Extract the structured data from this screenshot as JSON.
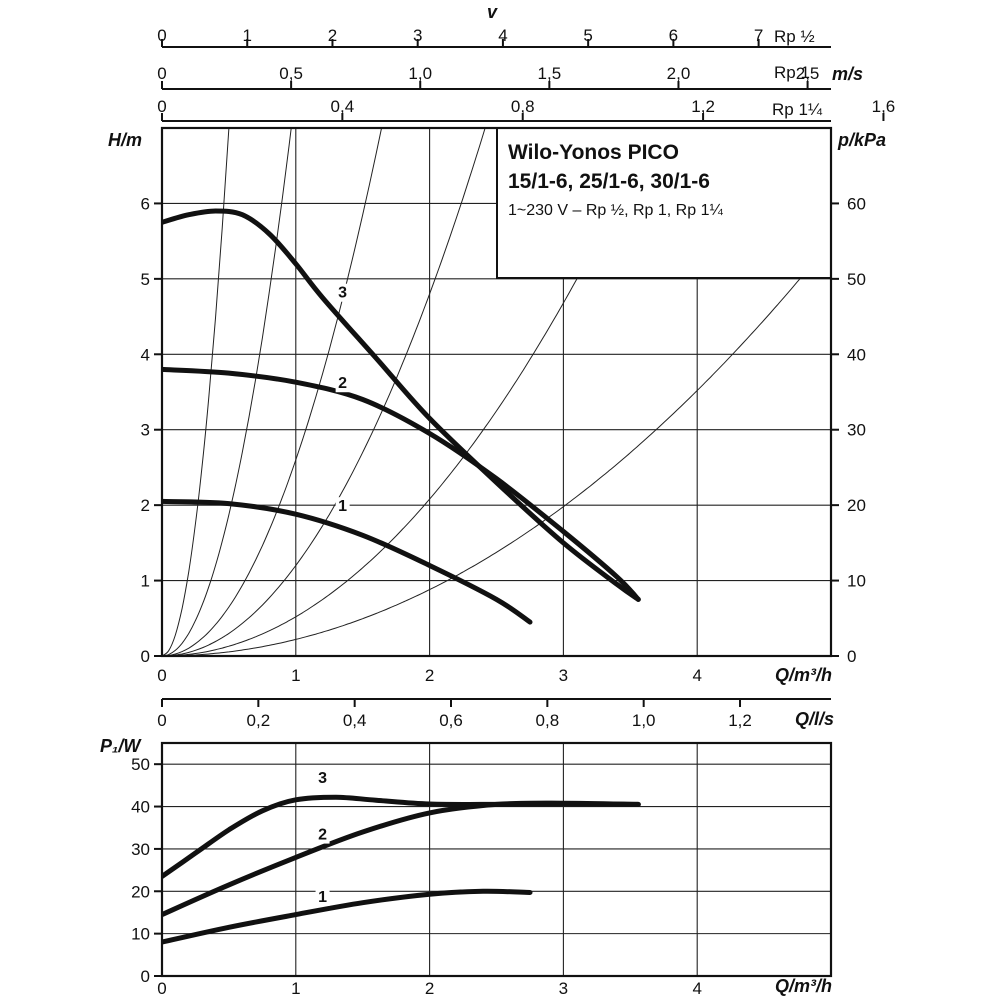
{
  "chart_data": [
    {
      "type": "line",
      "title": "Wilo-Yonos PICO",
      "subtitle": "15/1-6, 25/1-6, 30/1-6",
      "note": "1~230 V – Rp ½, Rp 1, Rp 1¼",
      "xlabel": "Q/m³/h",
      "ylabel": "H/m",
      "ylabel_right": "p/kPa",
      "xlim": [
        0,
        5
      ],
      "ylim": [
        0,
        7
      ],
      "ylim_right": [
        0,
        70
      ],
      "xticks": [
        "0",
        "1",
        "2",
        "3",
        "4"
      ],
      "yticks": [
        "0",
        "1",
        "2",
        "3",
        "4",
        "5",
        "6"
      ],
      "yticks_right": [
        "0",
        "10",
        "20",
        "30",
        "40",
        "50",
        "60"
      ],
      "grid": true,
      "velocity_axes": {
        "label": "v",
        "unit": "m/s",
        "scales": [
          {
            "name": "Rp ½",
            "ticks": [
              "0",
              "1",
              "2",
              "3",
              "4",
              "5",
              "6",
              "7"
            ],
            "values": [
              0,
              1,
              2,
              3,
              4,
              5,
              6,
              7
            ],
            "q_per_unit": 0.637
          },
          {
            "name": "Rp 1",
            "ticks": [
              "0",
              "0,5",
              "1,0",
              "1,5",
              "2,0",
              "2,5"
            ],
            "values": [
              0,
              0.5,
              1.0,
              1.5,
              2.0,
              2.5
            ],
            "q_per_unit": 1.93
          },
          {
            "name": "Rp 1¼",
            "ticks": [
              "0",
              "0,4",
              "0,8",
              "1,2",
              "1,6"
            ],
            "values": [
              0,
              0.4,
              0.8,
              1.2,
              1.6
            ],
            "q_per_unit": 3.37
          }
        ]
      },
      "flow_ls_axis": {
        "label": "Q/l/s",
        "ticks": [
          "0",
          "0,2",
          "0,4",
          "0,6",
          "0,8",
          "1,0",
          "1,2"
        ],
        "values": [
          0,
          0.2,
          0.4,
          0.6,
          0.8,
          1.0,
          1.2
        ]
      },
      "system_curves_k": [
        28,
        7.5,
        2.6,
        1.2,
        0.52,
        0.22
      ],
      "series": [
        {
          "name": "1",
          "x": [
            0,
            0.5,
            1.0,
            1.5,
            2.0,
            2.5,
            2.75
          ],
          "y": [
            2.05,
            2.02,
            1.88,
            1.6,
            1.2,
            0.75,
            0.45
          ]
        },
        {
          "name": "2",
          "x": [
            0,
            0.5,
            1.0,
            1.5,
            2.0,
            2.5,
            3.0,
            3.4,
            3.56
          ],
          "y": [
            3.8,
            3.75,
            3.63,
            3.4,
            2.95,
            2.35,
            1.65,
            1.05,
            0.75
          ]
        },
        {
          "name": "3",
          "x": [
            0,
            0.2,
            0.4,
            0.6,
            0.8,
            1.0,
            1.2,
            1.6,
            2.0,
            2.5,
            3.0,
            3.4,
            3.56
          ],
          "y": [
            5.75,
            5.85,
            5.9,
            5.85,
            5.6,
            5.2,
            4.75,
            3.95,
            3.15,
            2.3,
            1.5,
            0.95,
            0.75
          ]
        }
      ]
    },
    {
      "type": "line",
      "xlabel": "Q/m³/h",
      "ylabel": "P₁/W",
      "xlim": [
        0,
        5
      ],
      "ylim": [
        0,
        55
      ],
      "xticks": [
        "0",
        "1",
        "2",
        "3",
        "4"
      ],
      "yticks": [
        "0",
        "10",
        "20",
        "30",
        "40",
        "50"
      ],
      "grid": true,
      "series": [
        {
          "name": "1",
          "x": [
            0,
            0.5,
            1.0,
            1.5,
            2.0,
            2.4,
            2.75
          ],
          "y": [
            8,
            11.5,
            14.5,
            17.3,
            19.3,
            20,
            19.7
          ]
        },
        {
          "name": "2",
          "x": [
            0,
            0.5,
            1.0,
            1.5,
            2.0,
            2.5,
            3.0,
            3.56
          ],
          "y": [
            14.5,
            21.5,
            28,
            34,
            38.5,
            40.5,
            40.8,
            40.5
          ]
        },
        {
          "name": "3",
          "x": [
            0,
            0.25,
            0.5,
            0.75,
            1.0,
            1.3,
            1.6,
            2.0,
            2.5,
            3.0,
            3.56
          ],
          "y": [
            23.5,
            29,
            34.5,
            39,
            41.6,
            42.2,
            41.5,
            40.6,
            40.5,
            40.6,
            40.5
          ]
        }
      ]
    }
  ]
}
